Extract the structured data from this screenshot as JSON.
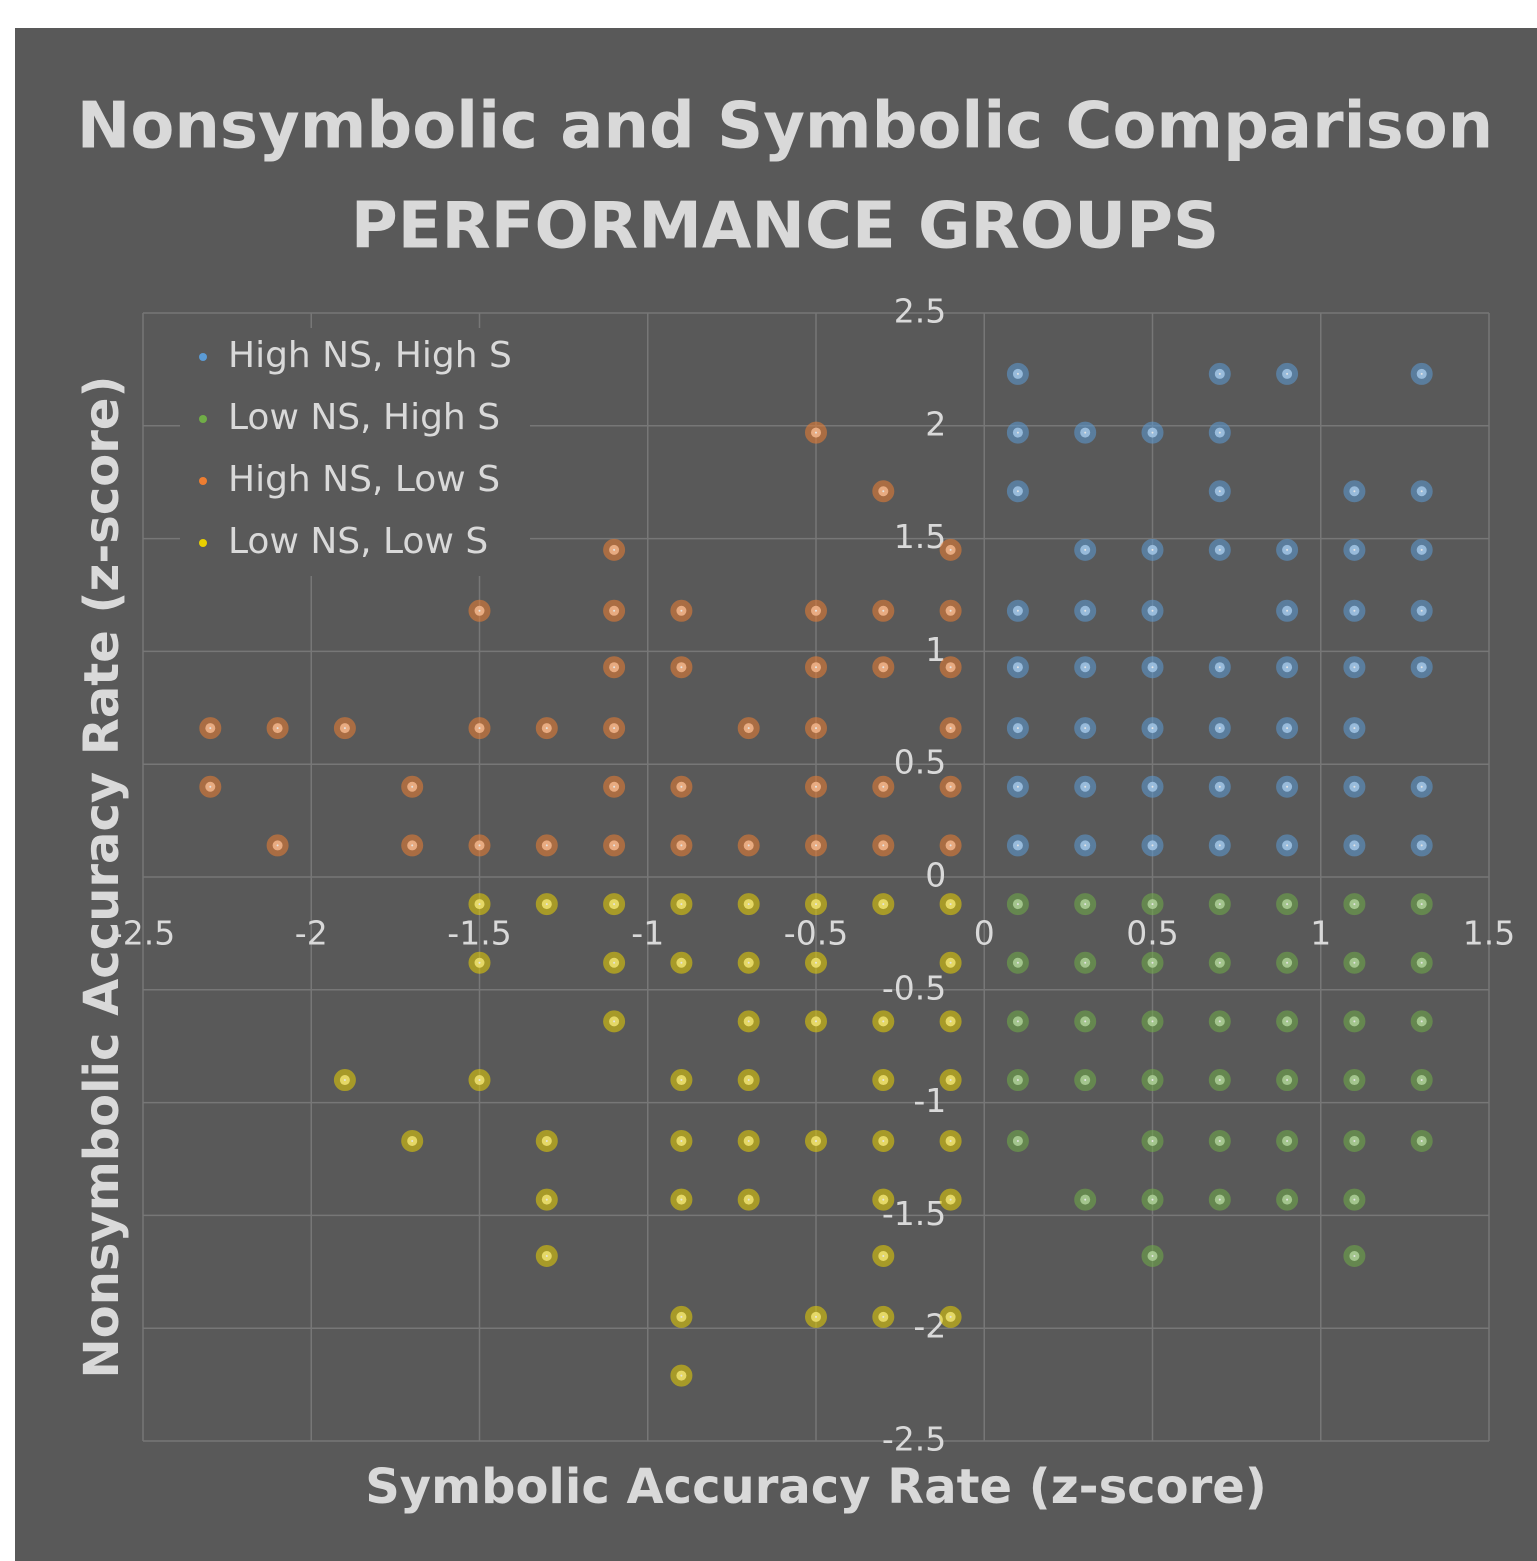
{
  "chart_data": {
    "type": "scatter",
    "title": "Nonsymbolic and Symbolic Comparison",
    "subtitle": "PERFORMANCE GROUPS",
    "x_label": "Symbolic Accuracy Rate (z-score)",
    "y_label": "Nonsymbolic Accuracy Rate (z-score)",
    "xlim": [
      -2.5,
      1.5
    ],
    "ylim": [
      -2.5,
      2.5
    ],
    "xticks": [
      -2.5,
      -2,
      -1.5,
      -1,
      -0.5,
      0,
      0.5,
      1,
      1.5
    ],
    "yticks": [
      -2.5,
      -2,
      -1.5,
      -1,
      -0.5,
      0,
      0.5,
      1,
      1.5,
      2,
      2.5
    ],
    "grid": true,
    "legend": "upper left",
    "series": [
      {
        "name": "High NS, High S",
        "color": "#5b9bd5",
        "x": [
          0.1,
          0.7,
          0.9,
          1.3,
          0.1,
          0.3,
          0.5,
          0.7,
          0.1,
          0.7,
          1.1,
          1.3,
          0.3,
          0.5,
          0.7,
          0.9,
          1.1,
          1.3,
          0.1,
          0.3,
          0.5,
          0.9,
          1.1,
          1.3,
          0.1,
          0.3,
          0.5,
          0.7,
          0.9,
          1.1,
          1.3,
          0.1,
          0.3,
          0.5,
          0.7,
          0.9,
          1.1,
          0.1,
          0.3,
          0.5,
          0.7,
          0.9,
          1.1,
          1.3,
          0.1,
          0.3,
          0.5,
          0.7,
          0.9,
          1.1,
          1.3
        ],
        "values": [
          2.23,
          2.23,
          2.23,
          2.23,
          1.97,
          1.97,
          1.97,
          1.97,
          1.71,
          1.71,
          1.71,
          1.71,
          1.45,
          1.45,
          1.45,
          1.45,
          1.45,
          1.45,
          1.18,
          1.18,
          1.18,
          1.18,
          1.18,
          1.18,
          0.93,
          0.93,
          0.93,
          0.93,
          0.93,
          0.93,
          0.93,
          0.66,
          0.66,
          0.66,
          0.66,
          0.66,
          0.66,
          0.4,
          0.4,
          0.4,
          0.4,
          0.4,
          0.4,
          0.4,
          0.14,
          0.14,
          0.14,
          0.14,
          0.14,
          0.14,
          0.14
        ]
      },
      {
        "name": "Low NS, High S",
        "color": "#70ad47",
        "x": [
          0.1,
          0.3,
          0.5,
          0.7,
          0.9,
          1.1,
          1.3,
          0.1,
          0.3,
          0.5,
          0.7,
          0.9,
          1.1,
          1.3,
          0.1,
          0.3,
          0.5,
          0.7,
          0.9,
          1.1,
          1.3,
          0.1,
          0.3,
          0.5,
          0.7,
          0.9,
          1.1,
          1.3,
          0.1,
          0.5,
          0.7,
          0.9,
          1.1,
          1.3,
          0.3,
          0.5,
          0.7,
          0.9,
          1.1,
          0.5,
          1.1
        ],
        "values": [
          -0.12,
          -0.12,
          -0.12,
          -0.12,
          -0.12,
          -0.12,
          -0.12,
          -0.38,
          -0.38,
          -0.38,
          -0.38,
          -0.38,
          -0.38,
          -0.38,
          -0.64,
          -0.64,
          -0.64,
          -0.64,
          -0.64,
          -0.64,
          -0.64,
          -0.9,
          -0.9,
          -0.9,
          -0.9,
          -0.9,
          -0.9,
          -0.9,
          -1.17,
          -1.17,
          -1.17,
          -1.17,
          -1.17,
          -1.17,
          -1.43,
          -1.43,
          -1.43,
          -1.43,
          -1.43,
          -1.68,
          -1.68
        ]
      },
      {
        "name": "High NS, Low S",
        "color": "#ed7d31",
        "x": [
          -0.5,
          -0.3,
          -1.1,
          -0.1,
          -1.5,
          -1.1,
          -0.9,
          -0.5,
          -0.3,
          -0.1,
          -1.1,
          -0.9,
          -0.5,
          -0.3,
          -0.1,
          -2.3,
          -2.1,
          -1.9,
          -1.5,
          -1.3,
          -1.1,
          -0.7,
          -0.5,
          -0.1,
          -2.3,
          -1.7,
          -1.1,
          -0.9,
          -0.5,
          -0.3,
          -0.1,
          -2.1,
          -1.7,
          -1.5,
          -1.3,
          -1.1,
          -0.9,
          -0.7,
          -0.5,
          -0.3,
          -0.1
        ],
        "values": [
          1.97,
          1.71,
          1.45,
          1.45,
          1.18,
          1.18,
          1.18,
          1.18,
          1.18,
          1.18,
          0.93,
          0.93,
          0.93,
          0.93,
          0.93,
          0.66,
          0.66,
          0.66,
          0.66,
          0.66,
          0.66,
          0.66,
          0.66,
          0.66,
          0.4,
          0.4,
          0.4,
          0.4,
          0.4,
          0.4,
          0.4,
          0.14,
          0.14,
          0.14,
          0.14,
          0.14,
          0.14,
          0.14,
          0.14,
          0.14,
          0.14
        ]
      },
      {
        "name": "Low NS, Low S",
        "color": "#e8d000",
        "x": [
          -1.5,
          -1.3,
          -1.1,
          -0.9,
          -0.7,
          -0.5,
          -0.3,
          -0.1,
          -1.5,
          -1.1,
          -0.9,
          -0.7,
          -0.5,
          -0.1,
          -1.1,
          -0.7,
          -0.5,
          -0.3,
          -0.1,
          -1.9,
          -1.5,
          -0.9,
          -0.7,
          -0.3,
          -0.1,
          -1.7,
          -1.3,
          -0.9,
          -0.7,
          -0.5,
          -0.3,
          -0.1,
          -1.3,
          -0.9,
          -0.7,
          -0.3,
          -0.1,
          -1.3,
          -0.3,
          -0.9,
          -0.5,
          -0.3,
          -0.1,
          -0.9
        ],
        "values": [
          -0.12,
          -0.12,
          -0.12,
          -0.12,
          -0.12,
          -0.12,
          -0.12,
          -0.12,
          -0.38,
          -0.38,
          -0.38,
          -0.38,
          -0.38,
          -0.38,
          -0.64,
          -0.64,
          -0.64,
          -0.64,
          -0.64,
          -0.9,
          -0.9,
          -0.9,
          -0.9,
          -0.9,
          -0.9,
          -1.17,
          -1.17,
          -1.17,
          -1.17,
          -1.17,
          -1.17,
          -1.17,
          -1.43,
          -1.43,
          -1.43,
          -1.43,
          -1.43,
          -1.68,
          -1.68,
          -1.95,
          -1.95,
          -1.95,
          -1.95,
          -2.21
        ]
      }
    ]
  }
}
